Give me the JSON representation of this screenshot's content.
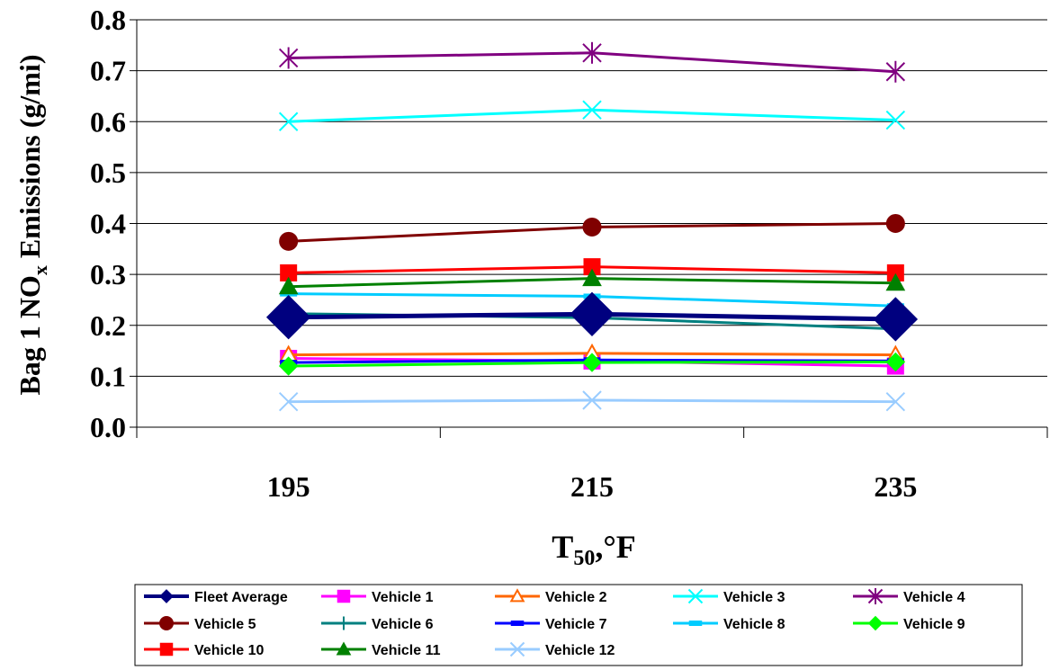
{
  "chart_data": {
    "type": "line",
    "x": [
      "195",
      "215",
      "235"
    ],
    "xlabel_main": "T",
    "xlabel_sub": "50",
    "xlabel_tail": ",°F",
    "ylabel_pre": "Bag 1 NO",
    "ylabel_sub": "x",
    "ylabel_post": " Emissions (g/mi)",
    "ylim": [
      0,
      0.8
    ],
    "yticks": [
      "0.0",
      "0.1",
      "0.2",
      "0.3",
      "0.4",
      "0.5",
      "0.6",
      "0.7",
      "0.8"
    ],
    "grid": true,
    "legend_position": "bottom",
    "series": [
      {
        "name": "Fleet Average",
        "values": [
          0.216,
          0.222,
          0.212
        ],
        "color": "#00007F",
        "marker": "diamond-big"
      },
      {
        "name": "Vehicle 1",
        "values": [
          0.135,
          0.13,
          0.12
        ],
        "color": "#FF00FF",
        "marker": "square"
      },
      {
        "name": "Vehicle 2",
        "values": [
          0.142,
          0.145,
          0.142
        ],
        "color": "#FF6600",
        "marker": "triangle-open"
      },
      {
        "name": "Vehicle 3",
        "values": [
          0.6,
          0.623,
          0.603
        ],
        "color": "#00FFFF",
        "marker": "x"
      },
      {
        "name": "Vehicle 4",
        "values": [
          0.725,
          0.735,
          0.698
        ],
        "color": "#800080",
        "marker": "star"
      },
      {
        "name": "Vehicle 5",
        "values": [
          0.365,
          0.393,
          0.4
        ],
        "color": "#800000",
        "marker": "circle"
      },
      {
        "name": "Vehicle 6",
        "values": [
          0.223,
          0.215,
          0.193
        ],
        "color": "#008080",
        "marker": "plus"
      },
      {
        "name": "Vehicle 7",
        "values": [
          0.127,
          0.132,
          0.13
        ],
        "color": "#0000FF",
        "marker": "dash"
      },
      {
        "name": "Vehicle 8",
        "values": [
          0.262,
          0.257,
          0.238
        ],
        "color": "#00CCFF",
        "marker": "dash"
      },
      {
        "name": "Vehicle 9",
        "values": [
          0.12,
          0.127,
          0.128
        ],
        "color": "#00FF00",
        "marker": "diamond"
      },
      {
        "name": "Vehicle 10",
        "values": [
          0.303,
          0.315,
          0.303
        ],
        "color": "#FF0000",
        "marker": "square"
      },
      {
        "name": "Vehicle 11",
        "values": [
          0.276,
          0.292,
          0.283
        ],
        "color": "#008000",
        "marker": "triangle"
      },
      {
        "name": "Vehicle 12",
        "values": [
          0.05,
          0.053,
          0.05
        ],
        "color": "#99CCFF",
        "marker": "x"
      }
    ]
  }
}
